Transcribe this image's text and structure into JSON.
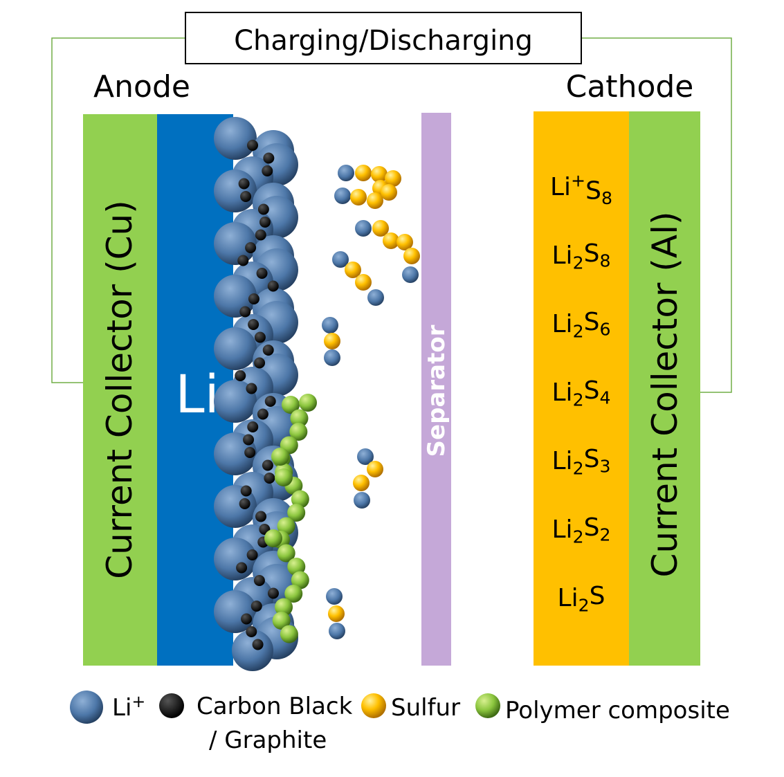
{
  "title_box": "Charging/Discharging",
  "anode": {
    "label": "Anode",
    "collector": "Current Collector (Cu)",
    "metal": "Li"
  },
  "separator": "Separator",
  "cathode": {
    "label": "Cathode",
    "collector": "Current Collector (Al)",
    "species": [
      [
        {
          "text": "Li"
        },
        {
          "text": "+",
          "pos": "sup"
        },
        {
          "text": "S"
        },
        {
          "text": "8",
          "pos": "sub"
        }
      ],
      [
        {
          "text": "Li"
        },
        {
          "text": "2",
          "pos": "sub"
        },
        {
          "text": "S"
        },
        {
          "text": "8",
          "pos": "sub"
        }
      ],
      [
        {
          "text": "Li"
        },
        {
          "text": "2",
          "pos": "sub"
        },
        {
          "text": "S"
        },
        {
          "text": "6",
          "pos": "sub"
        }
      ],
      [
        {
          "text": "Li"
        },
        {
          "text": "2",
          "pos": "sub"
        },
        {
          "text": "S"
        },
        {
          "text": "4",
          "pos": "sub"
        }
      ],
      [
        {
          "text": "Li"
        },
        {
          "text": "2",
          "pos": "sub"
        },
        {
          "text": "S"
        },
        {
          "text": "3",
          "pos": "sub"
        }
      ],
      [
        {
          "text": "Li"
        },
        {
          "text": "2",
          "pos": "sub"
        },
        {
          "text": "S"
        },
        {
          "text": "2",
          "pos": "sub"
        }
      ],
      [
        {
          "text": "Li"
        },
        {
          "text": "2",
          "pos": "sub"
        },
        {
          "text": "S"
        }
      ]
    ]
  },
  "legend": {
    "li_ion": [
      {
        "text": "Li"
      },
      {
        "text": "+",
        "pos": "sup"
      }
    ],
    "carbon": [
      "Carbon Black",
      "/ Graphite"
    ],
    "sulfur": "Sulfur",
    "polymer": "Polymer composite"
  }
}
